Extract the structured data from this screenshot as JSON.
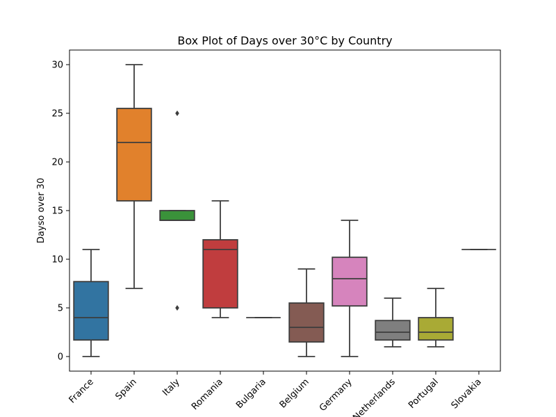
{
  "chart_data": {
    "type": "box",
    "title": "Box Plot of Days over 30°C by Country",
    "xlabel": "",
    "ylabel": "Dayso over 30",
    "ylim": [
      -1.5,
      31.5
    ],
    "yticks": [
      0,
      5,
      10,
      15,
      20,
      25,
      30
    ],
    "grid": false,
    "categories": [
      "France",
      "Spain",
      "Italy",
      "Romania",
      "Bulgaria",
      "Belgium",
      "Germany",
      "Netherlands",
      "Portugal",
      "Slovakia"
    ],
    "boxes": [
      {
        "category": "France",
        "whisker_low": 0,
        "q1": 1.7,
        "median": 4,
        "q3": 7.7,
        "whisker_high": 11,
        "outliers": [],
        "color": "#3274a1"
      },
      {
        "category": "Spain",
        "whisker_low": 7,
        "q1": 16,
        "median": 22,
        "q3": 25.5,
        "whisker_high": 30,
        "outliers": [],
        "color": "#e1812c"
      },
      {
        "category": "Italy",
        "whisker_low": 14,
        "q1": 14,
        "median": 14,
        "q3": 15,
        "whisker_high": 15,
        "outliers": [
          5,
          25
        ],
        "color": "#3a923a"
      },
      {
        "category": "Romania",
        "whisker_low": 4,
        "q1": 5,
        "median": 11,
        "q3": 12,
        "whisker_high": 16,
        "outliers": [],
        "color": "#c03d3e"
      },
      {
        "category": "Bulgaria",
        "whisker_low": 4,
        "q1": 4,
        "median": 4,
        "q3": 4,
        "whisker_high": 4,
        "outliers": [],
        "color": "#9372b2"
      },
      {
        "category": "Belgium",
        "whisker_low": 0,
        "q1": 1.5,
        "median": 3,
        "q3": 5.5,
        "whisker_high": 9,
        "outliers": [],
        "color": "#845b53"
      },
      {
        "category": "Germany",
        "whisker_low": 0,
        "q1": 5.2,
        "median": 8,
        "q3": 10.2,
        "whisker_high": 14,
        "outliers": [],
        "color": "#d684bd"
      },
      {
        "category": "Netherlands",
        "whisker_low": 1,
        "q1": 1.7,
        "median": 2.5,
        "q3": 3.7,
        "whisker_high": 6,
        "outliers": [],
        "color": "#7f7f7f"
      },
      {
        "category": "Portugal",
        "whisker_low": 1,
        "q1": 1.7,
        "median": 2.5,
        "q3": 4,
        "whisker_high": 7,
        "outliers": [],
        "color": "#a9aa35"
      },
      {
        "category": "Slovakia",
        "whisker_low": 11,
        "q1": 11,
        "median": 11,
        "q3": 11,
        "whisker_high": 11,
        "outliers": [],
        "color": "#2ea1b5"
      }
    ]
  }
}
